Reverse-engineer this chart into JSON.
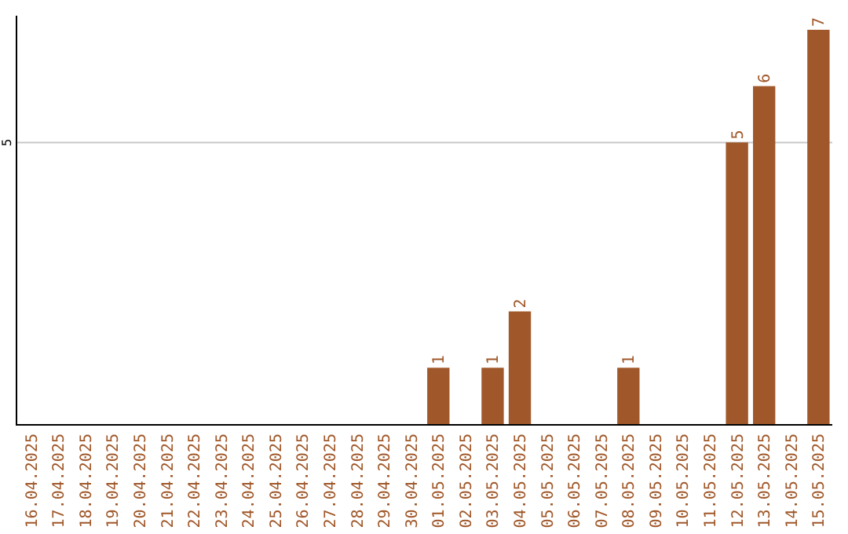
{
  "chart_data": {
    "type": "bar",
    "categories": [
      "16.04.2025",
      "17.04.2025",
      "18.04.2025",
      "19.04.2025",
      "20.04.2025",
      "21.04.2025",
      "22.04.2025",
      "23.04.2025",
      "24.04.2025",
      "25.04.2025",
      "26.04.2025",
      "27.04.2025",
      "28.04.2025",
      "29.04.2025",
      "30.04.2025",
      "01.05.2025",
      "02.05.2025",
      "03.05.2025",
      "04.05.2025",
      "05.05.2025",
      "06.05.2025",
      "07.05.2025",
      "08.05.2025",
      "09.05.2025",
      "10.05.2025",
      "11.05.2025",
      "12.05.2025",
      "13.05.2025",
      "14.05.2025",
      "15.05.2025"
    ],
    "values": [
      null,
      null,
      null,
      null,
      null,
      null,
      null,
      null,
      null,
      null,
      null,
      null,
      null,
      null,
      null,
      1,
      null,
      1,
      2,
      null,
      null,
      null,
      1,
      null,
      null,
      null,
      5,
      6,
      null,
      7
    ],
    "data_labels": true,
    "color": "#a0582a",
    "ylim": [
      0,
      7.25
    ],
    "yticks": [
      5
    ],
    "grid": "y"
  }
}
